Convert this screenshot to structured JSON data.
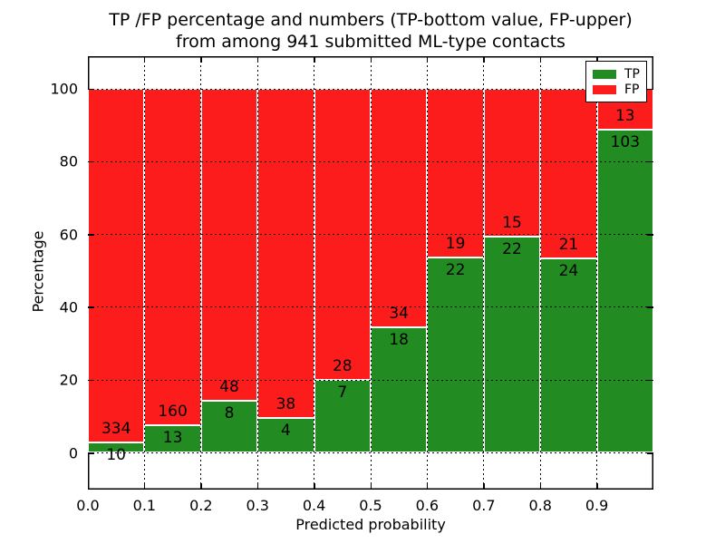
{
  "figure": {
    "title_line1": "TP /FP percentage and numbers (TP-bottom value, FP-upper)",
    "title_line2": "from among 941 submitted ML-type contacts"
  },
  "chart_data": {
    "type": "bar",
    "variant": "stacked-percentage",
    "title": "TP /FP percentage and numbers (TP-bottom value, FP-upper) from among 941 submitted ML-type contacts",
    "xlabel": "Predicted probability",
    "ylabel": "Percentage",
    "x_tick_labels": [
      "0.0",
      "0.1",
      "0.2",
      "0.3",
      "0.4",
      "0.5",
      "0.6",
      "0.7",
      "0.8",
      "0.9"
    ],
    "bin_edges": [
      0.0,
      0.1,
      0.2,
      0.3,
      0.4,
      0.5,
      0.6,
      0.7,
      0.8,
      0.9,
      1.0
    ],
    "y_ticks": [
      0,
      20,
      40,
      60,
      80,
      100
    ],
    "ylim": [
      -10,
      109
    ],
    "grid": true,
    "legend_position": "upper right",
    "annotation_note": "TP-bottom value, FP-upper",
    "total_contacts": 941,
    "series": [
      {
        "name": "TP",
        "color": "#228b22",
        "counts": [
          10,
          13,
          8,
          4,
          7,
          18,
          22,
          22,
          24,
          103
        ]
      },
      {
        "name": "FP",
        "color": "#fc1c1c",
        "counts": [
          334,
          160,
          48,
          38,
          28,
          34,
          19,
          15,
          21,
          13
        ]
      }
    ]
  },
  "legend": {
    "items": [
      {
        "label": "TP",
        "color": "#228b22"
      },
      {
        "label": "FP",
        "color": "#fc1c1c"
      }
    ]
  },
  "colors": {
    "tp_green": "#228b22",
    "fp_red": "#fc1c1c",
    "grid_black": "#000000",
    "background": "#ffffff"
  }
}
